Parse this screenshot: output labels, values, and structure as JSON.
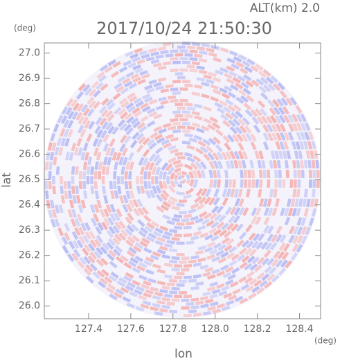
{
  "chart_data": {
    "type": "ppi",
    "title": "2017/10/24 21:50:30",
    "subtitle": "ALT(km) 2.0",
    "x_label": "lon",
    "y_label": "lat",
    "x_unit": "(deg)",
    "y_unit": "(deg)",
    "xlim": [
      127.19,
      128.5
    ],
    "ylim": [
      25.95,
      27.04
    ],
    "xticks": [
      127.4,
      127.6,
      127.8,
      {
        "value": 128,
        "label": "128.0"
      },
      128.2,
      128.4
    ],
    "yticks": [
      {
        "value": 26,
        "label": "26.0"
      },
      26.1,
      26.2,
      26.3,
      26.4,
      26.5,
      26.6,
      26.7,
      26.8,
      26.9,
      {
        "value": 27,
        "label": "27.0"
      }
    ],
    "colors": [
      "#f5b3b3",
      "#b9bdf4"
    ]
  }
}
